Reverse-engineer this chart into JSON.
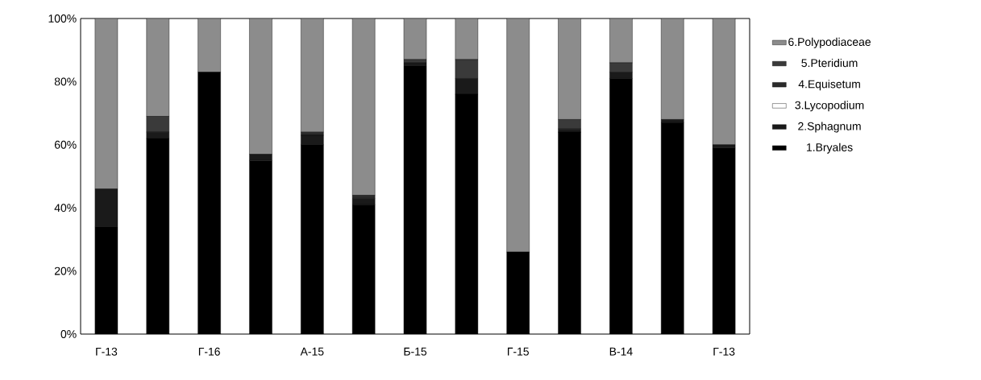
{
  "chart_data": {
    "type": "bar",
    "stacked": true,
    "legend": "right",
    "categories": [
      "Г-13",
      null,
      "Г-16",
      null,
      "А-15",
      null,
      "Б-15",
      null,
      "Г-15",
      null,
      "В-14",
      null,
      "Г-13"
    ],
    "ylim": [
      0,
      100
    ],
    "yticks": [
      {
        "value": 0,
        "label": "0%"
      },
      {
        "value": 20,
        "label": "20%"
      },
      {
        "value": 40,
        "label": "40%"
      },
      {
        "value": 60,
        "label": "60%"
      },
      {
        "value": 80,
        "label": "80%"
      },
      {
        "value": 100,
        "label": "100%"
      }
    ],
    "series": [
      {
        "name": "1.Bryales",
        "color": "#000000",
        "values": [
          34,
          62,
          83,
          55,
          60,
          41,
          85,
          76,
          26,
          64,
          81,
          67,
          59
        ]
      },
      {
        "name": "2.Sphagnum",
        "color": "#1a1a1a",
        "values": [
          12,
          2,
          0,
          2,
          3,
          2,
          1,
          5,
          0,
          1,
          2,
          1,
          1
        ]
      },
      {
        "name": "3.Lycopodium",
        "color": "#ffffff",
        "values": [
          0,
          0,
          0,
          0,
          0,
          0,
          0,
          0,
          0,
          0,
          0,
          0,
          0
        ]
      },
      {
        "name": "4.Equisetum",
        "color": "#2b2b2b",
        "values": [
          0,
          0,
          0,
          0,
          1,
          1,
          0,
          0,
          0,
          0,
          0,
          0,
          0
        ]
      },
      {
        "name": "5.Pteridium",
        "color": "#3a3a3a",
        "values": [
          0,
          5,
          0,
          0,
          0,
          0,
          1,
          6,
          0,
          3,
          3,
          0,
          0
        ]
      },
      {
        "name": "6.Polypodiaceae",
        "color": "#8c8c8c",
        "values": [
          54,
          31,
          17,
          43,
          36,
          56,
          13,
          13,
          74,
          32,
          14,
          32,
          40
        ]
      }
    ]
  }
}
